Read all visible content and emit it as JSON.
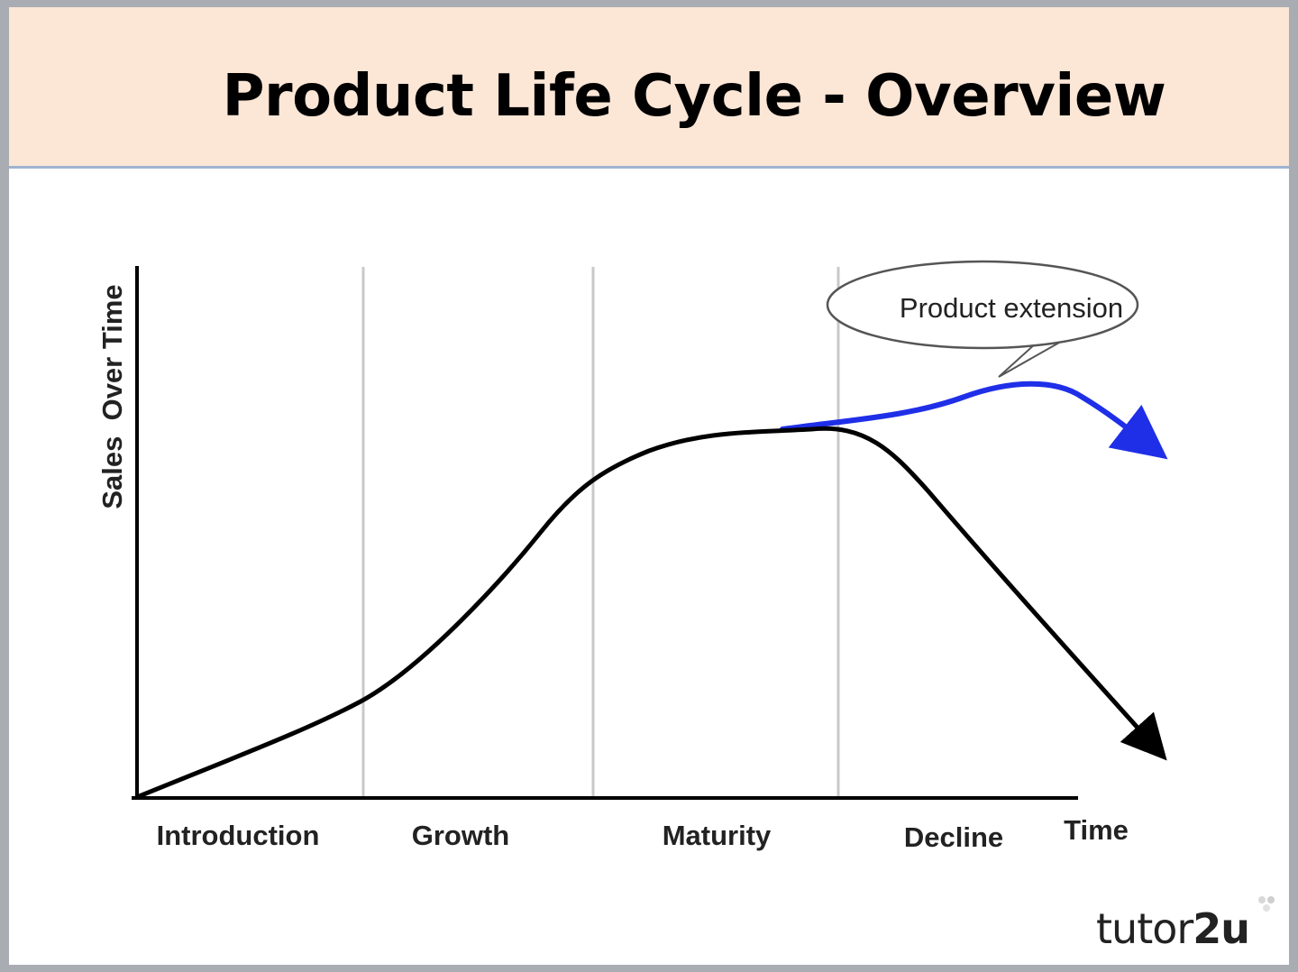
{
  "header": {
    "title": "Product Life Cycle - Overview"
  },
  "axes": {
    "y_label": "Sales  Over Time",
    "x_label": "Time"
  },
  "stages": [
    "Introduction",
    "Growth",
    "Maturity",
    "Decline"
  ],
  "callout": {
    "text": "Product extension"
  },
  "chart_data": {
    "type": "line",
    "title": "Product Life Cycle - Overview",
    "xlabel": "Time",
    "ylabel": "Sales  Over Time",
    "x_categories": [
      "Introduction",
      "Growth",
      "Maturity",
      "Decline"
    ],
    "series": [
      {
        "name": "Sales",
        "shape": "rises slowly in Introduction, accelerates in Growth, plateaus in Maturity, falls steeply in Decline"
      },
      {
        "name": "Product extension",
        "shape": "branches from the Maturity plateau, rises slightly into early Decline, then turns down"
      }
    ]
  },
  "logo": {
    "prefix": "tutor",
    "suffix": "2u"
  },
  "colors": {
    "header_bg": "#fce6d6",
    "curve": "#000000",
    "extension": "#1f2fe8",
    "divider": "#c8c8c8"
  }
}
